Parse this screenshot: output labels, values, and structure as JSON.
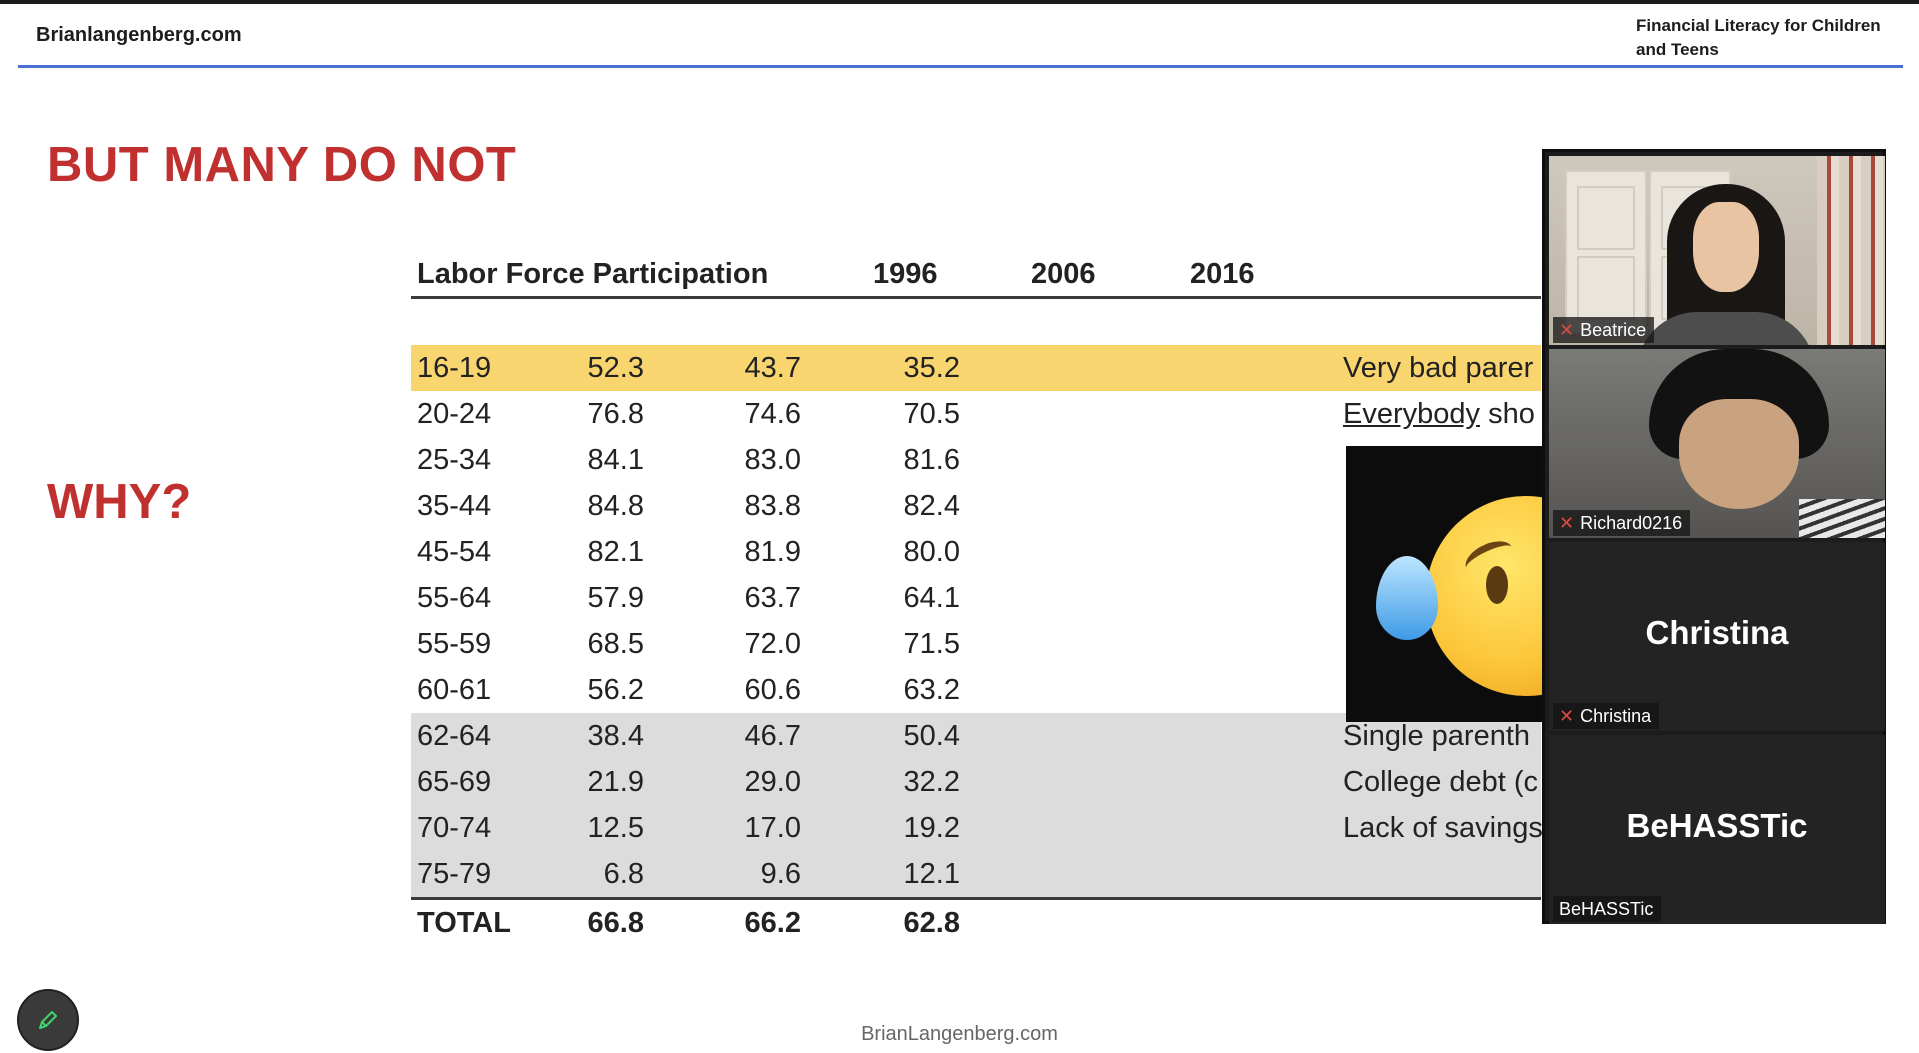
{
  "header": {
    "site_name": "Brianlangenberg.com",
    "course_title": "Financial Literacy for Children and Teens"
  },
  "slide": {
    "title": "BUT MANY DO NOT",
    "side_heading": "WHY?",
    "footer": "BrianLangenberg.com"
  },
  "table": {
    "headers": [
      "Labor Force Participation",
      "1996",
      "2006",
      "2016"
    ],
    "rows": [
      {
        "age": "16-19",
        "v1996": "52.3",
        "v2006": "43.7",
        "v2016": "35.2",
        "note": "Very bad parer"
      },
      {
        "age": "20-24",
        "v1996": "76.8",
        "v2006": "74.6",
        "v2016": "70.5",
        "note_underlined": "Everybody",
        "note_rest": " sho"
      },
      {
        "age": "25-34",
        "v1996": "84.1",
        "v2006": "83.0",
        "v2016": "81.6"
      },
      {
        "age": "35-44",
        "v1996": "84.8",
        "v2006": "83.8",
        "v2016": "82.4"
      },
      {
        "age": "45-54",
        "v1996": "82.1",
        "v2006": "81.9",
        "v2016": "80.0"
      },
      {
        "age": "55-64",
        "v1996": "57.9",
        "v2006": "63.7",
        "v2016": "64.1"
      },
      {
        "age": "55-59",
        "v1996": "68.5",
        "v2006": "72.0",
        "v2016": "71.5"
      },
      {
        "age": "60-61",
        "v1996": "56.2",
        "v2006": "60.6",
        "v2016": "63.2"
      },
      {
        "age": "62-64",
        "v1996": "38.4",
        "v2006": "46.7",
        "v2016": "50.4",
        "note": "Single parenth"
      },
      {
        "age": "65-69",
        "v1996": "21.9",
        "v2006": "29.0",
        "v2016": "32.2",
        "note": "College debt (c"
      },
      {
        "age": "70-74",
        "v1996": "12.5",
        "v2006": "17.0",
        "v2016": "19.2",
        "note": "Lack of savings"
      },
      {
        "age": "75-79",
        "v1996": "6.8",
        "v2006": "9.6",
        "v2016": "12.1"
      }
    ],
    "total": {
      "age": "TOTAL",
      "v1996": "66.8",
      "v2006": "66.2",
      "v2016": "62.8"
    }
  },
  "emoji": "crying-face-icon",
  "participants": [
    {
      "name": "Beatrice",
      "muted": true,
      "video": true
    },
    {
      "name": "Richard0216",
      "muted": true,
      "video": true
    },
    {
      "name": "Christina",
      "muted": true,
      "video": false,
      "display_name": "Christina"
    },
    {
      "name": "BeHASSTic",
      "muted": false,
      "video": false,
      "display_name": "BeHASSTic"
    }
  ],
  "colors": {
    "accent_red": "#c0302e",
    "highlight_yellow": "#f8d56e",
    "highlight_gray": "#dcdcdc",
    "header_rule_blue": "#4a6fd0",
    "mic_muted_red": "#e0483f"
  },
  "annotate_button": {
    "icon": "pencil-icon"
  }
}
